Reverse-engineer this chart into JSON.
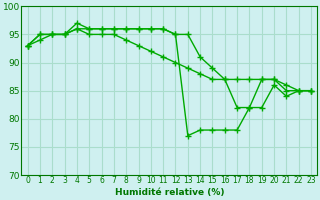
{
  "xlabel": "Humidité relative (%)",
  "xlim": [
    -0.5,
    23.5
  ],
  "ylim": [
    70,
    100
  ],
  "yticks": [
    70,
    75,
    80,
    85,
    90,
    95,
    100
  ],
  "xticks": [
    0,
    1,
    2,
    3,
    4,
    5,
    6,
    7,
    8,
    9,
    10,
    11,
    12,
    13,
    14,
    15,
    16,
    17,
    18,
    19,
    20,
    21,
    22,
    23
  ],
  "background_color": "#cff0f0",
  "grid_color": "#aaddcc",
  "line_color": "#00aa00",
  "series": [
    [
      93,
      95,
      95,
      95,
      97,
      96,
      96,
      96,
      96,
      96,
      96,
      96,
      95,
      77,
      78,
      78,
      78,
      78,
      82,
      87,
      87,
      85,
      85,
      85
    ],
    [
      93,
      95,
      95,
      95,
      96,
      96,
      96,
      96,
      96,
      96,
      96,
      96,
      95,
      95,
      91,
      89,
      87,
      87,
      87,
      87,
      87,
      86,
      85,
      85
    ],
    [
      93,
      94,
      95,
      95,
      96,
      95,
      95,
      95,
      94,
      93,
      92,
      91,
      90,
      89,
      88,
      87,
      87,
      82,
      82,
      82,
      86,
      84,
      85,
      85
    ]
  ]
}
